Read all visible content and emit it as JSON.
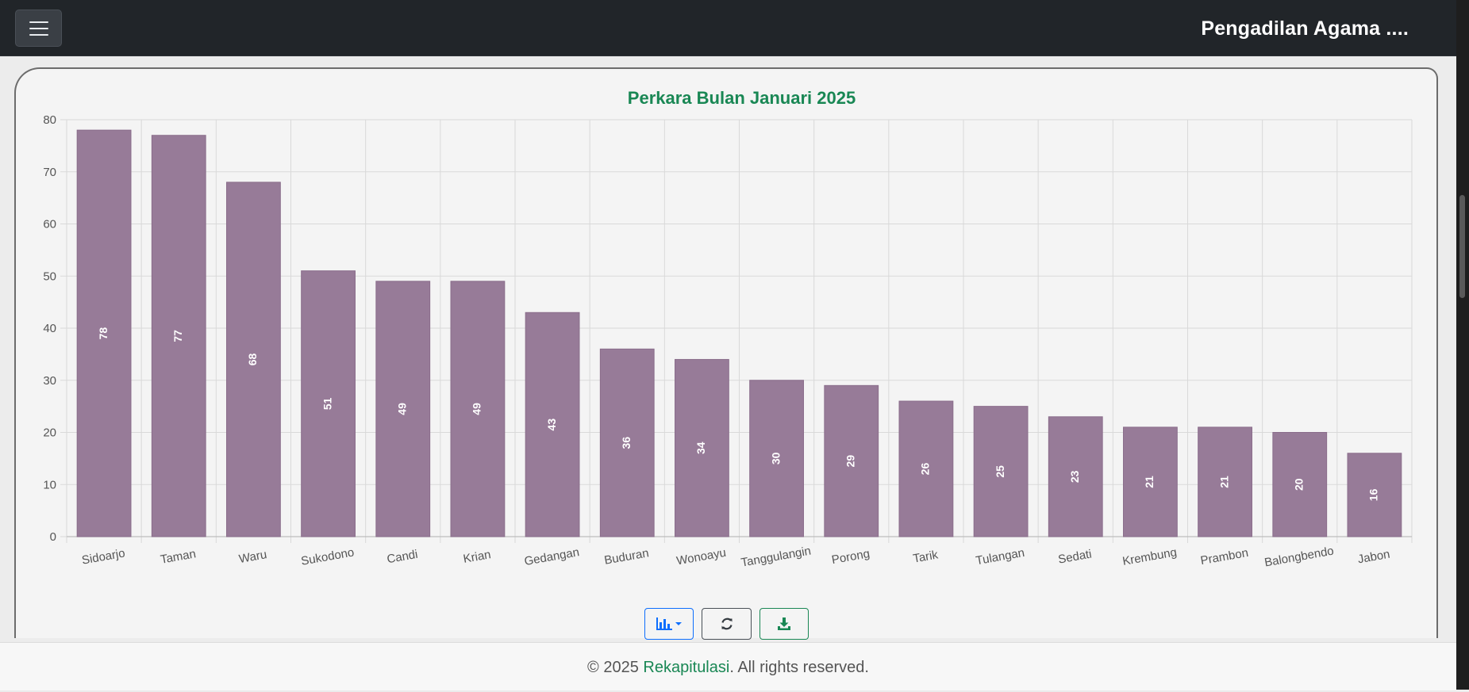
{
  "navbar": {
    "brand": "Pengadilan Agama ....",
    "menu_icon": "hamburger-menu-icon"
  },
  "colors": {
    "navbar_bg": "#212529",
    "bar_fill": "#977b98",
    "title_color": "#198754",
    "link_color": "#198754"
  },
  "chart_data": {
    "type": "bar",
    "title": "Perkara Bulan Januari 2025",
    "xlabel": "",
    "ylabel": "",
    "ylim": [
      0,
      80
    ],
    "yticks": [
      0,
      10,
      20,
      30,
      40,
      50,
      60,
      70,
      80
    ],
    "grid": true,
    "legend": "none",
    "categories": [
      "Sidoarjo",
      "Taman",
      "Waru",
      "Sukodono",
      "Candi",
      "Krian",
      "Gedangan",
      "Buduran",
      "Wonoayu",
      "Tanggulangin",
      "Porong",
      "Tarik",
      "Tulangan",
      "Sedati",
      "Krembung",
      "Prambon",
      "Balongbendo",
      "Jabon"
    ],
    "values": [
      78,
      77,
      68,
      51,
      49,
      49,
      43,
      36,
      34,
      30,
      29,
      26,
      25,
      23,
      21,
      21,
      20,
      16
    ],
    "data_labels": true
  },
  "toolbar": {
    "chart_type_icon": "bar-chart-icon",
    "dropdown_icon": "caret-down-icon",
    "refresh_icon": "refresh-icon",
    "download_icon": "download-icon"
  },
  "footer": {
    "prefix": "© 2025 ",
    "brand": "Rekapitulasi",
    "suffix": ". All rights reserved."
  }
}
